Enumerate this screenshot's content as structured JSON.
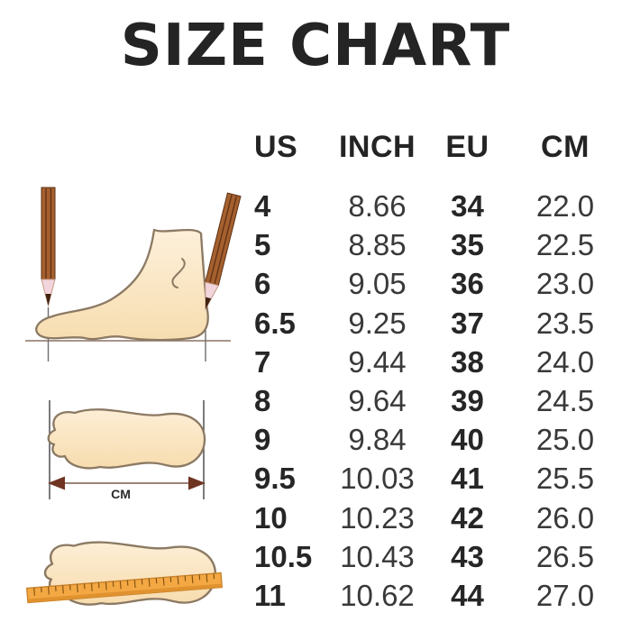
{
  "title": "SIZE CHART",
  "chart_data": {
    "type": "table",
    "title": "SIZE CHART",
    "columns": [
      "US",
      "INCH",
      "EU",
      "CM"
    ],
    "rows": [
      [
        "4",
        "8.66",
        "34",
        "22.0"
      ],
      [
        "5",
        "8.85",
        "35",
        "22.5"
      ],
      [
        "6",
        "9.05",
        "36",
        "23.0"
      ],
      [
        "6.5",
        "9.25",
        "37",
        "23.5"
      ],
      [
        "7",
        "9.44",
        "38",
        "24.0"
      ],
      [
        "8",
        "9.64",
        "39",
        "24.5"
      ],
      [
        "9",
        "9.84",
        "40",
        "25.0"
      ],
      [
        "9.5",
        "10.03",
        "41",
        "25.5"
      ],
      [
        "10",
        "10.23",
        "42",
        "26.0"
      ],
      [
        "10.5",
        "10.43",
        "43",
        "26.5"
      ],
      [
        "11",
        "10.62",
        "44",
        "27.0"
      ]
    ]
  },
  "illustrations": {
    "cm_arrow_label": "CM",
    "items": [
      "foot-side-measured-with-pencils",
      "footprint-length-arrow",
      "footprint-with-ruler"
    ]
  },
  "colors": {
    "background": "#ffffff",
    "text": "#262626",
    "foot_fill": "#fae5c2",
    "foot_outline": "#8b7963",
    "pencil_brown": "#a5602f",
    "ruler_orange": "#f3a844",
    "arrow_brown": "#6f3322"
  }
}
